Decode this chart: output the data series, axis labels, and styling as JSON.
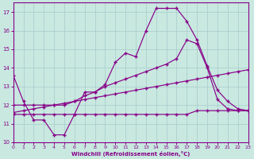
{
  "bg_color": "#c8e8e0",
  "grid_color": "#a8cccc",
  "line_color": "#880088",
  "xlim": [
    0,
    23
  ],
  "ylim": [
    10,
    17.5
  ],
  "yticks": [
    10,
    11,
    12,
    13,
    14,
    15,
    16,
    17
  ],
  "xticks": [
    0,
    1,
    2,
    3,
    4,
    5,
    6,
    7,
    8,
    9,
    10,
    11,
    12,
    13,
    14,
    15,
    16,
    17,
    18,
    19,
    20,
    21,
    22,
    23
  ],
  "xlabel": "Windchill (Refroidissement éolien,°C)",
  "line1_x": [
    0,
    1,
    2,
    3,
    4,
    5,
    6,
    7,
    8,
    9,
    10,
    11,
    12,
    13,
    14,
    15,
    16,
    17,
    18,
    19,
    20,
    21,
    22,
    23
  ],
  "line1_y": [
    13.6,
    12.2,
    11.2,
    11.2,
    10.4,
    10.4,
    11.5,
    12.7,
    12.7,
    13.1,
    14.3,
    14.8,
    14.6,
    16.0,
    17.2,
    17.2,
    17.2,
    16.5,
    15.5,
    14.1,
    12.8,
    12.2,
    11.8,
    11.7
  ],
  "line2_x": [
    0,
    1,
    2,
    3,
    4,
    5,
    6,
    7,
    8,
    9,
    10,
    11,
    12,
    13,
    14,
    15,
    16,
    17,
    18,
    19,
    20,
    21,
    22,
    23
  ],
  "line2_y": [
    12.0,
    12.0,
    12.0,
    12.0,
    12.0,
    12.0,
    12.2,
    12.5,
    12.7,
    13.0,
    13.2,
    13.4,
    13.6,
    13.8,
    14.0,
    14.2,
    14.5,
    15.5,
    15.3,
    14.0,
    12.3,
    11.8,
    11.7,
    11.7
  ],
  "line3_x": [
    0,
    1,
    2,
    3,
    4,
    5,
    6,
    7,
    8,
    9,
    10,
    11,
    12,
    13,
    14,
    15,
    16,
    17,
    18,
    19,
    20,
    21,
    22,
    23
  ],
  "line3_y": [
    11.5,
    11.5,
    11.5,
    11.5,
    11.5,
    11.5,
    11.5,
    11.5,
    11.5,
    11.5,
    11.5,
    11.5,
    11.5,
    11.5,
    11.5,
    11.5,
    11.5,
    11.5,
    11.7,
    11.7,
    11.7,
    11.7,
    11.7,
    11.7
  ],
  "line4_x": [
    0,
    1,
    2,
    3,
    4,
    5,
    6,
    7,
    8,
    9,
    10,
    11,
    12,
    13,
    14,
    15,
    16,
    17,
    18,
    19,
    20,
    21,
    22,
    23
  ],
  "line4_y": [
    11.6,
    11.7,
    11.8,
    11.9,
    12.0,
    12.1,
    12.2,
    12.3,
    12.4,
    12.5,
    12.6,
    12.7,
    12.8,
    12.9,
    13.0,
    13.1,
    13.2,
    13.3,
    13.4,
    13.5,
    13.6,
    13.7,
    13.8,
    13.9
  ]
}
